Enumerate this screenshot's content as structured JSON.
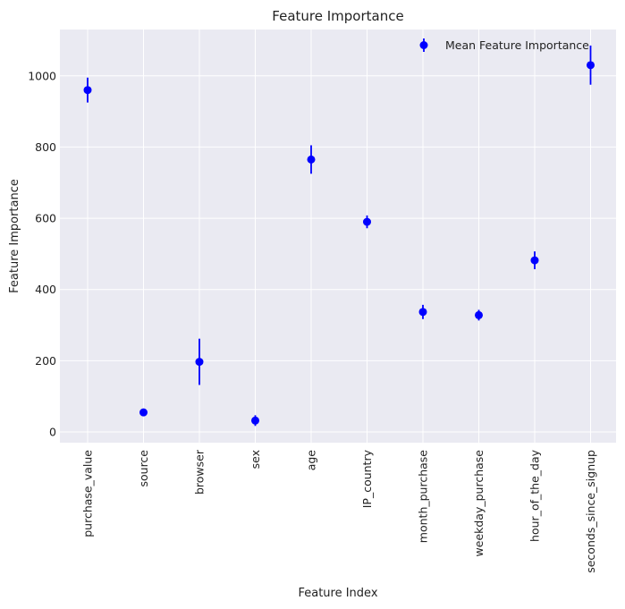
{
  "chart_data": {
    "type": "scatter",
    "title": "Feature Importance",
    "xlabel": "Feature Index",
    "ylabel": "Feature Importance",
    "ylim": [
      -30,
      1130
    ],
    "yticks": [
      0,
      200,
      400,
      600,
      800,
      1000
    ],
    "grid": true,
    "legend_position": "top-right",
    "categories": [
      "purchase_value",
      "source",
      "browser",
      "sex",
      "age",
      "IP_country",
      "month_purchase",
      "weekday_purchase",
      "hour_of_the_day",
      "seconds_since_signup"
    ],
    "series": [
      {
        "name": "Mean Feature Importance",
        "color": "#0000ff",
        "values": [
          960,
          55,
          197,
          32,
          765,
          590,
          337,
          328,
          482,
          1030
        ],
        "errors": [
          35,
          5,
          65,
          15,
          40,
          18,
          20,
          15,
          25,
          55
        ]
      }
    ]
  },
  "colors": {
    "plot_background": "#eaeaf2",
    "grid": "#ffffff",
    "marker": "#0000ff"
  }
}
